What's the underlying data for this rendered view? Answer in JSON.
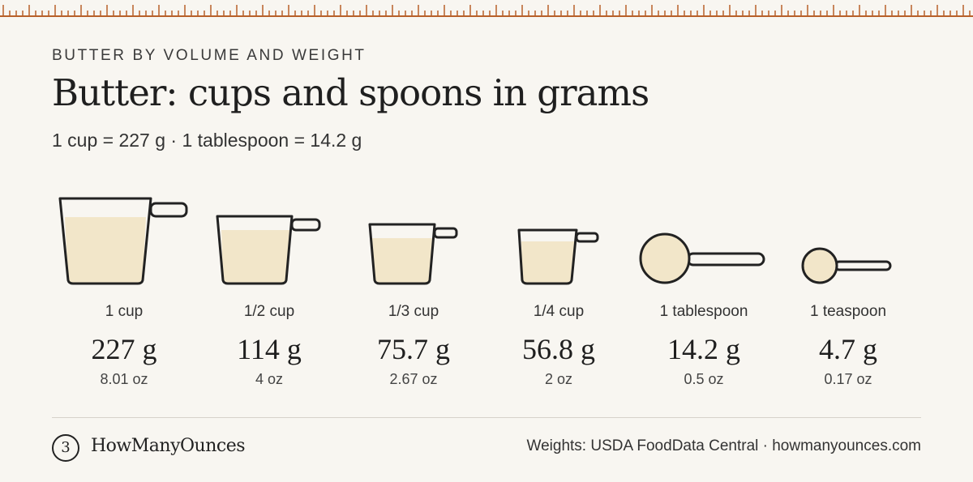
{
  "header": {
    "eyebrow": "BUTTER BY VOLUME AND WEIGHT",
    "title": "Butter: cups and spoons in grams",
    "subtitle": "1 cup = 227 g · 1 tablespoon = 14.2 g"
  },
  "measures": [
    {
      "label": "1 cup",
      "grams": "227 g",
      "ounces": "8.01 oz",
      "icon": "measuring-cup-icon"
    },
    {
      "label": "1/2 cup",
      "grams": "114 g",
      "ounces": "4 oz",
      "icon": "measuring-cup-icon"
    },
    {
      "label": "1/3 cup",
      "grams": "75.7 g",
      "ounces": "2.67 oz",
      "icon": "measuring-cup-icon"
    },
    {
      "label": "1/4 cup",
      "grams": "56.8 g",
      "ounces": "2 oz",
      "icon": "measuring-cup-icon"
    },
    {
      "label": "1 tablespoon",
      "grams": "14.2 g",
      "ounces": "0.5 oz",
      "icon": "measuring-spoon-icon"
    },
    {
      "label": "1 teaspoon",
      "grams": "4.7 g",
      "ounces": "0.17 oz",
      "icon": "measuring-spoon-icon"
    }
  ],
  "footer": {
    "logo_glyph": "3",
    "brand": "HowManyOunces",
    "source": "Weights: USDA FoodData Central · howmanyounces.com"
  },
  "colors": {
    "background": "#f8f6f1",
    "ruler": "#b8612a",
    "butter_fill": "#f2e6c9",
    "outline": "#222222"
  }
}
